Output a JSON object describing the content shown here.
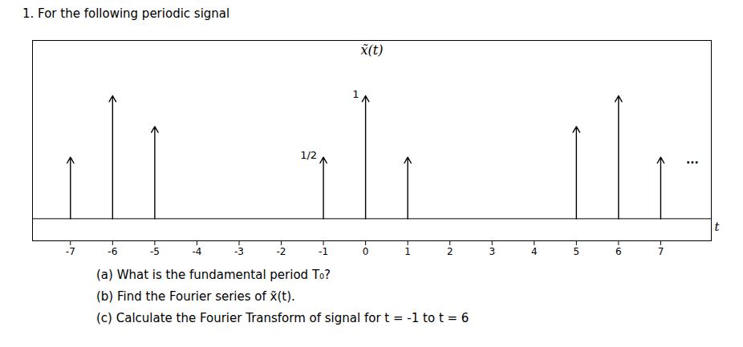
{
  "chart_data": {
    "type": "stem",
    "title": "x̃(t)",
    "subtitle": "1.  For the following periodic signal",
    "caption": [
      "(a)  What is the fundamental period T₀?",
      "(b)  Find the Fourier series of x̃(t).",
      "(c) Calculate the Fourier Transform of signal for t = -1 to t = 6"
    ],
    "xlabel": "t",
    "x": [
      -7,
      -6,
      -5,
      -1,
      0,
      1,
      5,
      6,
      7
    ],
    "values": [
      0.5,
      1.0,
      0.75,
      0.5,
      1.0,
      0.5,
      0.75,
      1.0,
      0.5
    ],
    "color": "black",
    "xlim": [
      -7.9,
      8.2
    ],
    "ylim": [
      -0.18,
      1.45
    ],
    "xticks": [
      -7,
      -6,
      -5,
      -4,
      -3,
      -2,
      -1,
      0,
      1,
      2,
      3,
      4,
      5,
      6,
      7
    ],
    "tick_labels": "x",
    "annotations": [
      {
        "x": -1,
        "y": 0.5,
        "text": "1/2"
      },
      {
        "x": 0,
        "y": 1.0,
        "text": "1"
      },
      {
        "x": 7.6,
        "y": 0.48,
        "text": "..."
      }
    ]
  }
}
